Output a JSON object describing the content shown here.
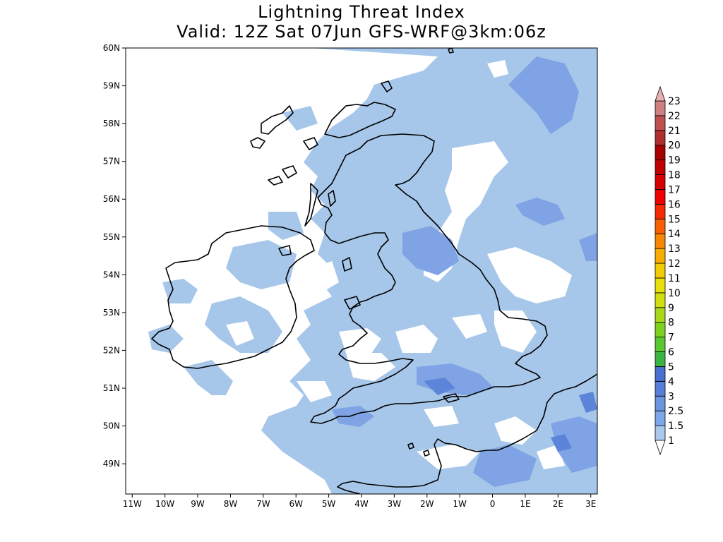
{
  "title": "Lightning Threat Index",
  "subtitle": "Valid: 12Z Sat 07Jun GFS-WRF@3km:06z",
  "lat_labels": [
    "60N",
    "59N",
    "58N",
    "57N",
    "56N",
    "55N",
    "54N",
    "53N",
    "52N",
    "51N",
    "50N",
    "49N"
  ],
  "lon_labels": [
    "11W",
    "10W",
    "9W",
    "8W",
    "7W",
    "6W",
    "5W",
    "4W",
    "3W",
    "2W",
    "1W",
    "0",
    "1E",
    "2E",
    "3E"
  ],
  "map_extent": {
    "lon_min": -11.2,
    "lon_max": 3.2,
    "lat_min": 48.2,
    "lat_max": 60
  },
  "legend": {
    "levels": [
      "1",
      "1.5",
      "2.5",
      "3",
      "4",
      "5",
      "6",
      "7",
      "8",
      "9",
      "10",
      "11",
      "12",
      "13",
      "14",
      "15",
      "16",
      "17",
      "18",
      "19",
      "20",
      "21",
      "22",
      "23"
    ],
    "colors": [
      "#a9c8ec",
      "#7da7e8",
      "#6a94e0",
      "#5680d8",
      "#4a6fd0",
      "#3cb444",
      "#58c830",
      "#80d020",
      "#a8d818",
      "#d2e012",
      "#e8e00a",
      "#f0cc00",
      "#f8ae00",
      "#f88800",
      "#f86000",
      "#f82800",
      "#f00000",
      "#d80000",
      "#c00000",
      "#a80000",
      "#b03030",
      "#c05050",
      "#d08080",
      "#e8b0b0"
    ]
  },
  "colors": {
    "light_fill": "#a6c7ea",
    "medium_fill": "#7fa3e4",
    "dark_fill": "#5c84d8",
    "coast": "#000000"
  }
}
